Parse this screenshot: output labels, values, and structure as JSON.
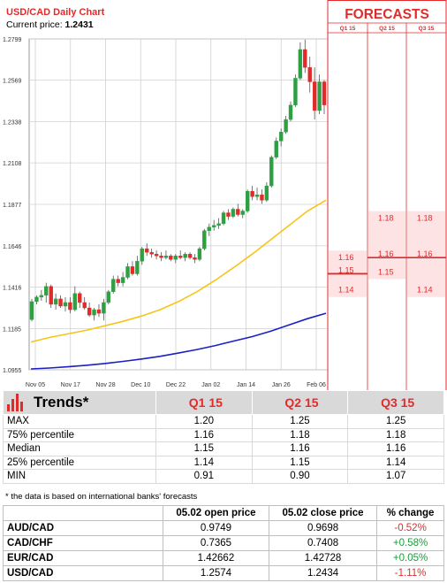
{
  "chart_data": {
    "type": "candlestick",
    "title": "USD/CAD Daily Chart",
    "current_price_label": "Current price:",
    "current_price": "1.2431",
    "y_ticks": [
      "1.2799",
      "1.2569",
      "1.2338",
      "1.2108",
      "1.1877",
      "1.1646",
      "1.1416",
      "1.1185",
      "1.0955"
    ],
    "ylim": [
      1.0955,
      1.2799
    ],
    "x_ticks": [
      "Nov 05",
      "Nov 17",
      "Nov 28",
      "Dec 10",
      "Dec 22",
      "Jan 02",
      "Jan 14",
      "Jan 26",
      "Feb 06"
    ],
    "candles": [
      [
        1.1235,
        1.135,
        1.1225,
        1.1335
      ],
      [
        1.1335,
        1.137,
        1.132,
        1.136
      ],
      [
        1.136,
        1.14,
        1.134,
        1.137
      ],
      [
        1.137,
        1.144,
        1.133,
        1.142
      ],
      [
        1.142,
        1.143,
        1.13,
        1.132
      ],
      [
        1.132,
        1.138,
        1.129,
        1.135
      ],
      [
        1.135,
        1.137,
        1.13,
        1.131
      ],
      [
        1.131,
        1.136,
        1.128,
        1.133
      ],
      [
        1.133,
        1.136,
        1.127,
        1.129
      ],
      [
        1.129,
        1.142,
        1.128,
        1.138
      ],
      [
        1.138,
        1.139,
        1.13,
        1.133
      ],
      [
        1.133,
        1.136,
        1.129,
        1.13
      ],
      [
        1.13,
        1.133,
        1.125,
        1.126
      ],
      [
        1.126,
        1.13,
        1.123,
        1.129
      ],
      [
        1.129,
        1.132,
        1.125,
        1.127
      ],
      [
        1.127,
        1.135,
        1.123,
        1.133
      ],
      [
        1.133,
        1.14,
        1.132,
        1.139
      ],
      [
        1.139,
        1.148,
        1.138,
        1.146
      ],
      [
        1.146,
        1.148,
        1.142,
        1.144
      ],
      [
        1.144,
        1.15,
        1.142,
        1.147
      ],
      [
        1.147,
        1.155,
        1.146,
        1.153
      ],
      [
        1.153,
        1.156,
        1.148,
        1.149
      ],
      [
        1.149,
        1.159,
        1.148,
        1.156
      ],
      [
        1.156,
        1.164,
        1.154,
        1.163
      ],
      [
        1.163,
        1.166,
        1.159,
        1.161
      ],
      [
        1.161,
        1.163,
        1.158,
        1.16
      ],
      [
        1.16,
        1.162,
        1.157,
        1.159
      ],
      [
        1.159,
        1.161,
        1.156,
        1.158
      ],
      [
        1.158,
        1.162,
        1.157,
        1.159
      ],
      [
        1.159,
        1.16,
        1.156,
        1.157
      ],
      [
        1.157,
        1.16,
        1.155,
        1.159
      ],
      [
        1.159,
        1.162,
        1.157,
        1.158
      ],
      [
        1.158,
        1.161,
        1.156,
        1.16
      ],
      [
        1.16,
        1.161,
        1.157,
        1.158
      ],
      [
        1.158,
        1.16,
        1.155,
        1.157
      ],
      [
        1.157,
        1.164,
        1.156,
        1.163
      ],
      [
        1.163,
        1.174,
        1.162,
        1.173
      ],
      [
        1.173,
        1.177,
        1.17,
        1.175
      ],
      [
        1.175,
        1.179,
        1.173,
        1.176
      ],
      [
        1.176,
        1.18,
        1.174,
        1.177
      ],
      [
        1.177,
        1.184,
        1.176,
        1.183
      ],
      [
        1.183,
        1.185,
        1.179,
        1.181
      ],
      [
        1.181,
        1.186,
        1.18,
        1.185
      ],
      [
        1.185,
        1.188,
        1.181,
        1.182
      ],
      [
        1.182,
        1.185,
        1.18,
        1.184
      ],
      [
        1.184,
        1.196,
        1.183,
        1.195
      ],
      [
        1.195,
        1.198,
        1.19,
        1.192
      ],
      [
        1.192,
        1.197,
        1.19,
        1.193
      ],
      [
        1.193,
        1.196,
        1.188,
        1.19
      ],
      [
        1.19,
        1.2,
        1.189,
        1.198
      ],
      [
        1.198,
        1.215,
        1.197,
        1.214
      ],
      [
        1.214,
        1.225,
        1.213,
        1.223
      ],
      [
        1.223,
        1.23,
        1.22,
        1.228
      ],
      [
        1.228,
        1.237,
        1.227,
        1.235
      ],
      [
        1.235,
        1.245,
        1.234,
        1.243
      ],
      [
        1.243,
        1.26,
        1.242,
        1.258
      ],
      [
        1.258,
        1.278,
        1.257,
        1.274
      ],
      [
        1.274,
        1.2795,
        1.261,
        1.264
      ],
      [
        1.264,
        1.27,
        1.25,
        1.256
      ],
      [
        1.256,
        1.264,
        1.235,
        1.24
      ],
      [
        1.24,
        1.26,
        1.238,
        1.256
      ],
      [
        1.256,
        1.257,
        1.238,
        1.2431
      ]
    ],
    "ma_yellow": [
      1.111,
      1.1135,
      1.1155,
      1.1175,
      1.12,
      1.1225,
      1.1255,
      1.129,
      1.1335,
      1.139,
      1.1455,
      1.1525,
      1.16,
      1.168,
      1.176,
      1.184,
      1.19
    ],
    "ma_blue": [
      1.096,
      1.0965,
      1.0972,
      1.098,
      1.099,
      1.1002,
      1.1015,
      1.103,
      1.1048,
      1.1068,
      1.109,
      1.1115,
      1.114,
      1.117,
      1.1205,
      1.124,
      1.127
    ],
    "forecasts": {
      "title": "FORECASTS",
      "columns": [
        "Q1 15",
        "Q2 15",
        "Q3 15"
      ],
      "labels": [
        {
          "col": 0,
          "text": "1.16",
          "value": 1.158
        },
        {
          "col": 0,
          "text": "1.15",
          "value": 1.151
        },
        {
          "col": 0,
          "text": "1.14",
          "value": 1.14
        },
        {
          "col": 1,
          "text": "1.18",
          "value": 1.18
        },
        {
          "col": 1,
          "text": "1.16",
          "value": 1.16
        },
        {
          "col": 1,
          "text": "1.15",
          "value": 1.15
        },
        {
          "col": 2,
          "text": "1.18",
          "value": 1.18
        },
        {
          "col": 2,
          "text": "1.16",
          "value": 1.16
        },
        {
          "col": 2,
          "text": "1.14",
          "value": 1.14
        }
      ]
    }
  },
  "trends": {
    "title": "Trends*",
    "headers": [
      "Q1 15",
      "Q2 15",
      "Q3 15"
    ],
    "rows": [
      {
        "label": "MAX",
        "values": [
          "1.20",
          "1.25",
          "1.25"
        ]
      },
      {
        "label": "75% percentile",
        "values": [
          "1.16",
          "1.18",
          "1.18"
        ]
      },
      {
        "label": "Median",
        "values": [
          "1.15",
          "1.16",
          "1.16"
        ]
      },
      {
        "label": "25% percentile",
        "values": [
          "1.14",
          "1.15",
          "1.14"
        ]
      },
      {
        "label": "MIN",
        "values": [
          "0.91",
          "0.90",
          "1.07"
        ]
      }
    ],
    "footnote": "* the data is based on international banks' forecasts"
  },
  "fx": {
    "headers": [
      "",
      "05.02 open price",
      "05.02 close price",
      "% change"
    ],
    "rows": [
      {
        "pair": "AUD/CAD",
        "open": "0.9749",
        "close": "0.9698",
        "change": "-0.52%"
      },
      {
        "pair": "CAD/CHF",
        "open": "0.7365",
        "close": "0.7408",
        "change": "+0.58%"
      },
      {
        "pair": "EUR/CAD",
        "open": "1.42662",
        "close": "1.42728",
        "change": "+0.05%"
      },
      {
        "pair": "USD/CAD",
        "open": "1.2574",
        "close": "1.2434",
        "change": "-1.11%"
      }
    ]
  },
  "colors": {
    "red": "#e12b2b",
    "up": "#2ea043",
    "down": "#e12b2b",
    "ma_yellow": "#f5c518",
    "ma_blue": "#1d1fc4",
    "grid": "#d0d0d0",
    "forecast_fill": "#fde3e3"
  }
}
